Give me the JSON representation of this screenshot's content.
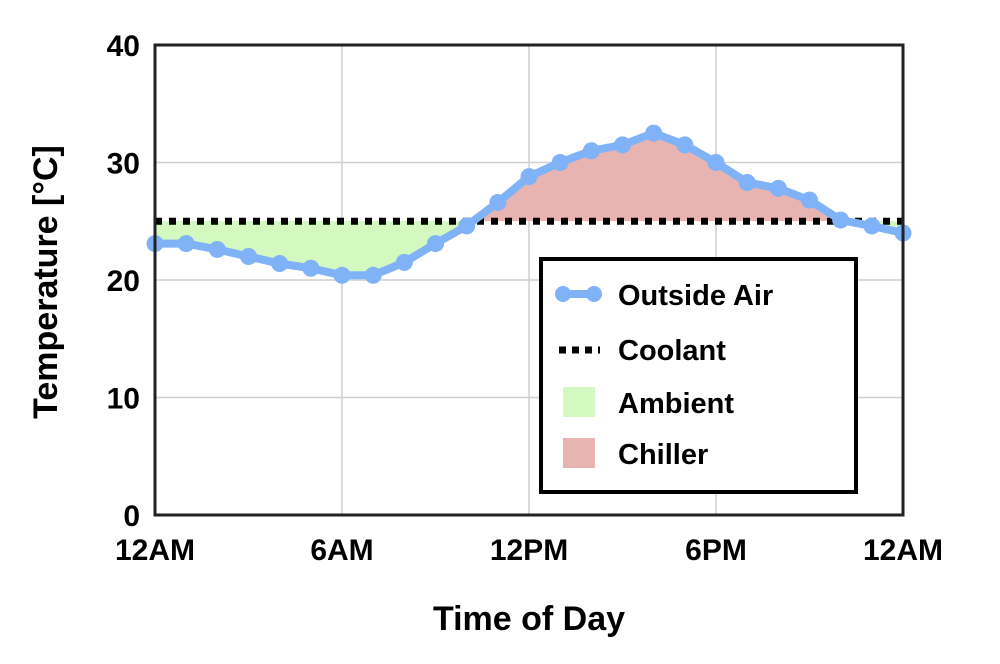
{
  "chart_data": {
    "type": "line",
    "xlabel": "Time of Day",
    "ylabel": "Temperature [°C]",
    "ylim": [
      0,
      40
    ],
    "yticks": [
      0,
      10,
      20,
      30,
      40
    ],
    "xlim": [
      0,
      24
    ],
    "xticks": [
      {
        "value": 0,
        "label": "12AM"
      },
      {
        "value": 6,
        "label": "6AM"
      },
      {
        "value": 12,
        "label": "12PM"
      },
      {
        "value": 18,
        "label": "6PM"
      },
      {
        "value": 24,
        "label": "12AM"
      }
    ],
    "grid": true,
    "legend_position": "bottom-right",
    "series": [
      {
        "name": "Outside Air",
        "style": "line-markers",
        "color": "#7FB2F7",
        "x": [
          0,
          1,
          2,
          3,
          4,
          5,
          6,
          7,
          8,
          9,
          10,
          11,
          12,
          13,
          14,
          15,
          16,
          17,
          18,
          19,
          20,
          21,
          22,
          23,
          24
        ],
        "y": [
          23.1,
          23.1,
          22.6,
          22.0,
          21.4,
          21.0,
          20.4,
          20.4,
          21.5,
          23.1,
          24.6,
          26.6,
          28.8,
          30.0,
          31.0,
          31.5,
          32.5,
          31.5,
          30.0,
          28.3,
          27.8,
          26.8,
          25.1,
          24.6,
          24.0
        ]
      },
      {
        "name": "Coolant",
        "style": "dotted",
        "color": "#000000",
        "value": 25
      },
      {
        "name": "Ambient",
        "style": "fill-below-coolant",
        "color": "#D3F8C0"
      },
      {
        "name": "Chiller",
        "style": "fill-above-coolant",
        "color": "#E8B4B2"
      }
    ]
  }
}
